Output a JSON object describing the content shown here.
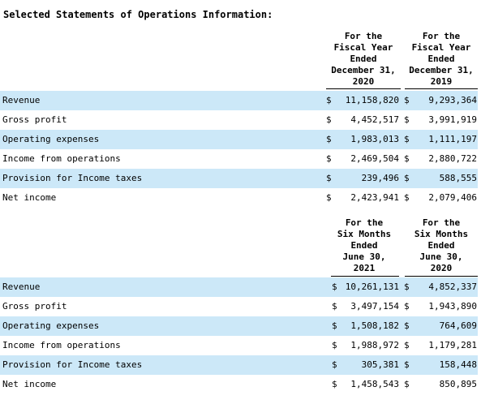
{
  "title": "Selected Statements of Operations Information:",
  "sections": [
    {
      "headers": [
        "For the\nFiscal Year\nEnded\nDecember  31,\n2020",
        "For the\nFiscal Year\nEnded\nDecember  31,\n2019"
      ],
      "rows": [
        {
          "label": "Revenue",
          "d1": "$",
          "v1": "11,158,820",
          "d2": "$",
          "v2": "9,293,364"
        },
        {
          "label": "Gross profit",
          "d1": "$",
          "v1": "4,452,517",
          "d2": "$",
          "v2": "3,991,919"
        },
        {
          "label": "Operating expenses",
          "d1": "$",
          "v1": "1,983,013",
          "d2": "$",
          "v2": "1,111,197"
        },
        {
          "label": "Income from operations",
          "d1": "$",
          "v1": "2,469,504",
          "d2": "$",
          "v2": "2,880,722"
        },
        {
          "label": "Provision for Income taxes",
          "d1": "$",
          "v1": "239,496",
          "d2": "$",
          "v2": "588,555"
        },
        {
          "label": "Net income",
          "d1": "$",
          "v1": "2,423,941",
          "d2": "$",
          "v2": "2,079,406"
        }
      ]
    },
    {
      "headers": [
        "For the\nSix  Months\nEnded\nJune  30,\n2021",
        "For the\nSix  Months\nEnded\nJune  30,\n2020"
      ],
      "rows": [
        {
          "label": "Revenue",
          "d1": "$",
          "v1": "10,261,131",
          "d2": "$",
          "v2": "4,852,337"
        },
        {
          "label": "Gross profit",
          "d1": "$",
          "v1": "3,497,154",
          "d2": "$",
          "v2": "1,943,890"
        },
        {
          "label": "Operating expenses",
          "d1": "$",
          "v1": "1,508,182",
          "d2": "$",
          "v2": "764,609"
        },
        {
          "label": "Income from operations",
          "d1": "$",
          "v1": "1,988,972",
          "d2": "$",
          "v2": "1,179,281"
        },
        {
          "label": "Provision for Income taxes",
          "d1": "$",
          "v1": "305,381",
          "d2": "$",
          "v2": "158,448"
        },
        {
          "label": "Net income",
          "d1": "$",
          "v1": "1,458,543",
          "d2": "$",
          "v2": "850,895"
        }
      ]
    }
  ]
}
